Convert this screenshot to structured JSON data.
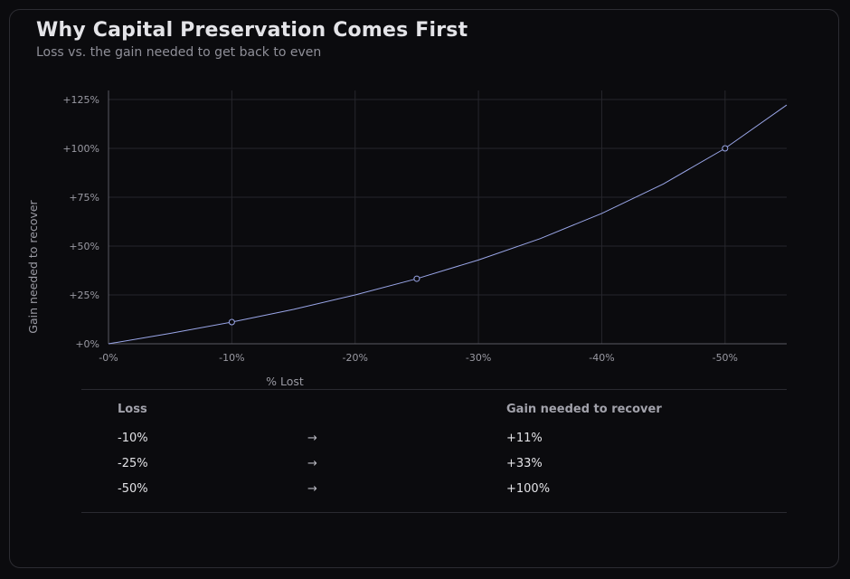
{
  "header": {
    "title": "Why Capital Preservation Comes First",
    "subtitle": "Loss vs. the gain needed to get back to even"
  },
  "chart_data": {
    "type": "line",
    "title": "Why Capital Preservation Comes First",
    "subtitle": "Loss vs. the gain needed to get back to even",
    "xlabel": "% Lost",
    "ylabel": "Gain needed to recover",
    "xlim": [
      0,
      55
    ],
    "ylim": [
      0,
      125
    ],
    "x_ticks": [
      0,
      10,
      20,
      30,
      40,
      50
    ],
    "x_tick_labels": [
      "-0%",
      "-10%",
      "-20%",
      "-30%",
      "-40%",
      "-50%"
    ],
    "y_ticks": [
      0,
      25,
      50,
      75,
      100,
      125
    ],
    "y_tick_labels": [
      "+0%",
      "+25%",
      "+50%",
      "+75%",
      "+100%",
      "+125%"
    ],
    "grid": true,
    "line_color": "#9aa6e8",
    "series": [
      {
        "x": [
          0,
          5,
          10,
          15,
          20,
          25,
          30,
          35,
          40,
          45,
          50,
          55
        ],
        "values": [
          0,
          5.3,
          11.1,
          17.6,
          25,
          33.3,
          42.9,
          53.8,
          66.7,
          81.8,
          100,
          122.2
        ]
      }
    ],
    "markers": [
      {
        "x": 10,
        "y": 11.1
      },
      {
        "x": 25,
        "y": 33.3
      },
      {
        "x": 50,
        "y": 100
      }
    ]
  },
  "table": {
    "header_loss": "Loss",
    "header_gain": "Gain needed to recover",
    "rows": [
      {
        "loss": "-10%",
        "arrow": "→",
        "gain": "+11%"
      },
      {
        "loss": "-25%",
        "arrow": "→",
        "gain": "+33%"
      },
      {
        "loss": "-50%",
        "arrow": "→",
        "gain": "+100%"
      }
    ]
  }
}
